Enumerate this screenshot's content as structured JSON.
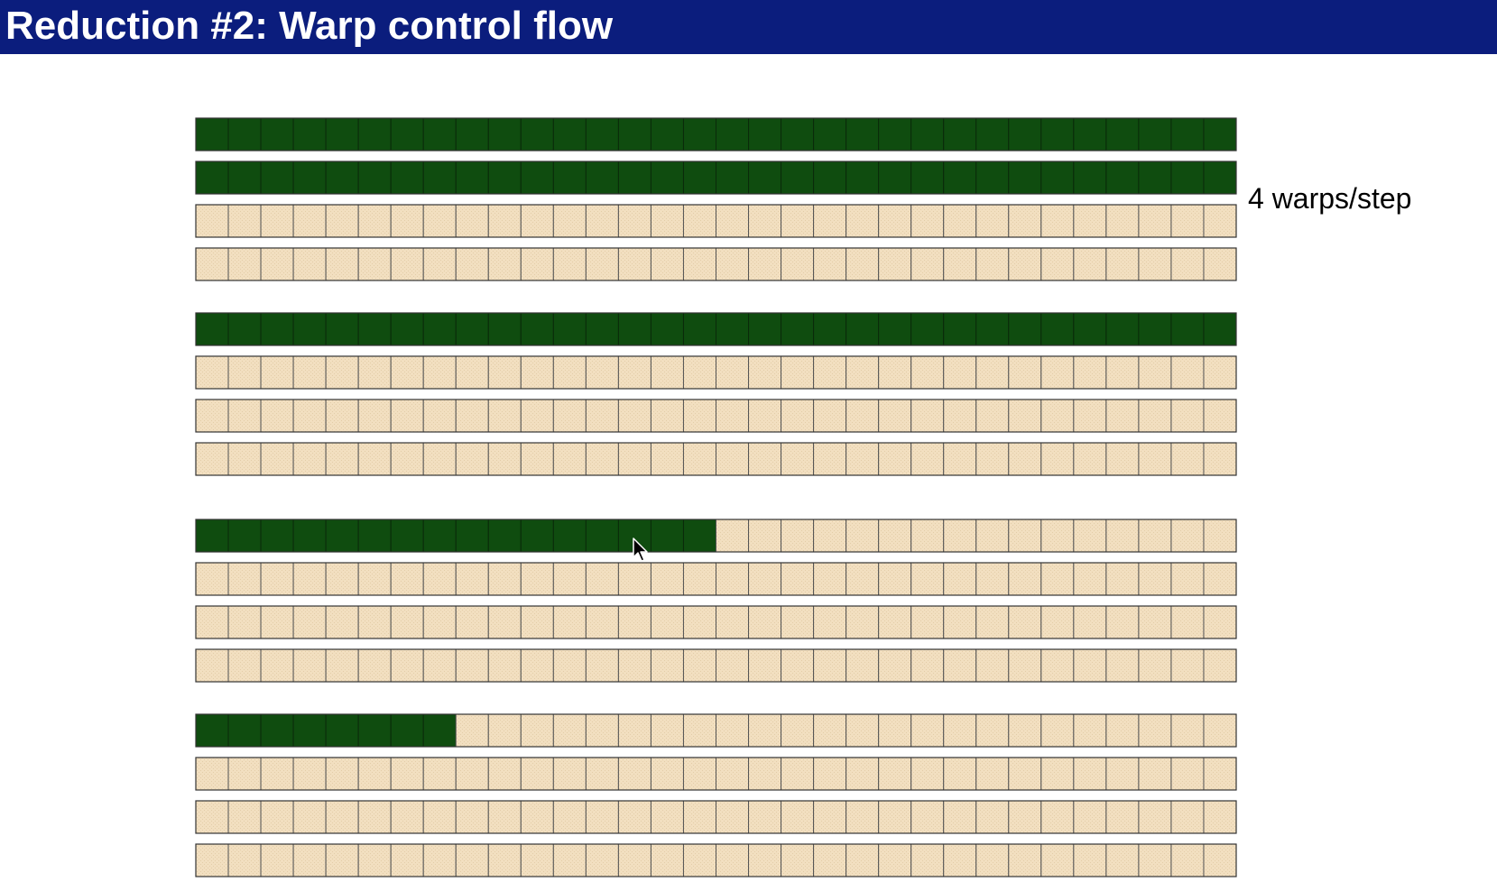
{
  "title": "Reduction #2: Warp control flow",
  "annotation": "4 warps/step",
  "threads_per_warp": 32,
  "steps": [
    {
      "step": 1,
      "warps_active_threads": [
        32,
        32,
        0,
        0
      ]
    },
    {
      "step": 2,
      "warps_active_threads": [
        32,
        0,
        0,
        0
      ]
    },
    {
      "step": 3,
      "warps_active_threads": [
        16,
        0,
        0,
        0
      ]
    },
    {
      "step": 4,
      "warps_active_threads": [
        8,
        0,
        0,
        0
      ]
    }
  ],
  "colors": {
    "title_bar": "#0b1d7d",
    "title_text": "#ffffff",
    "active_thread": "#0f4c0f",
    "inactive_thread": "#f2dfc0",
    "cell_border": "#555555"
  },
  "cursor_icon": "mouse-pointer-icon"
}
